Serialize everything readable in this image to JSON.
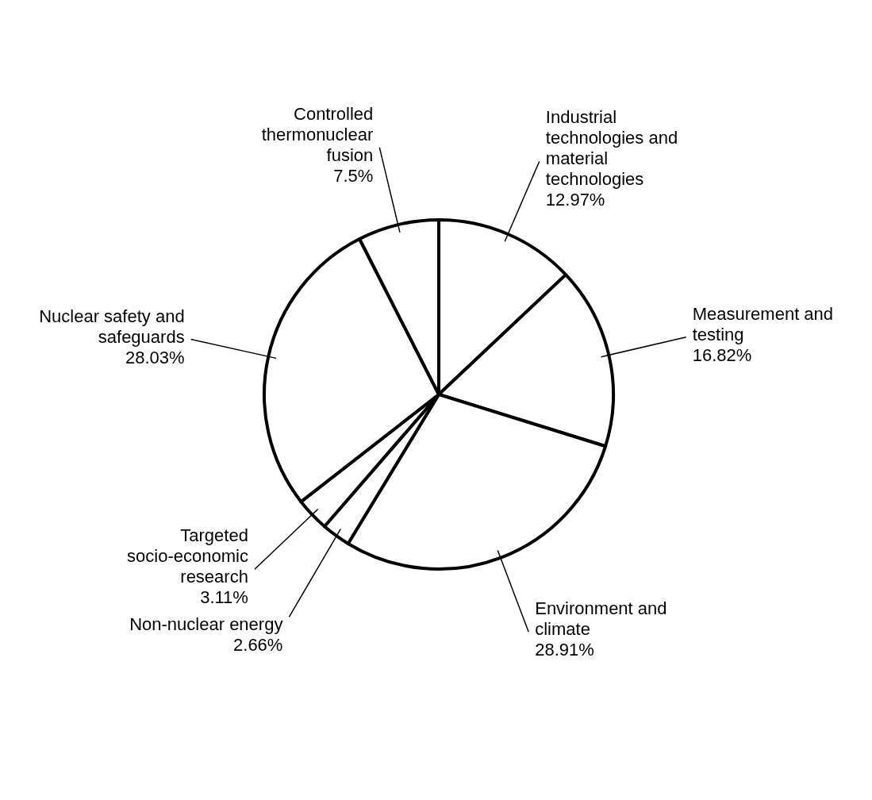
{
  "chart_data": {
    "type": "pie",
    "categories": [
      "Industrial technologies and material technologies",
      "Measurement and testing",
      "Environment and climate",
      "Non-nuclear energy",
      "Targeted socio-economic research",
      "Nuclear safety and safeguards",
      "Controlled thermonuclear fusion"
    ],
    "values": [
      12.97,
      16.82,
      28.91,
      2.66,
      3.11,
      28.03,
      7.5
    ],
    "value_labels": [
      "12.97%",
      "16.82%",
      "28.91%",
      "2.66%",
      "3.11%",
      "28.03%",
      "7.5%"
    ],
    "colors": [
      "#ffffff",
      "#ffffff",
      "#ffffff",
      "#ffffff",
      "#ffffff",
      "#ffffff",
      "#ffffff"
    ],
    "legend": false
  }
}
